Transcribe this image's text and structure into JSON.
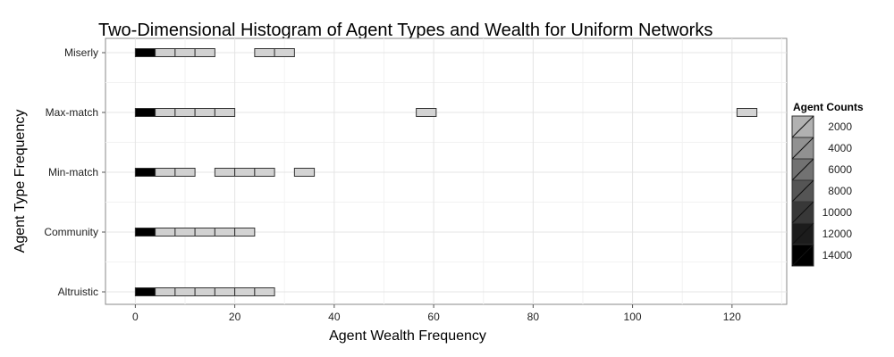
{
  "chart_data": {
    "type": "heatmap",
    "title": "Two-Dimensional Histogram of Agent Types and Wealth for Uniform Networks",
    "xlabel": "Agent Wealth Frequency",
    "ylabel": "Agent Type Frequency",
    "xlim": [
      -6,
      131
    ],
    "x_ticks": [
      0,
      20,
      40,
      60,
      80,
      100,
      120
    ],
    "categories": [
      "Altruistic",
      "Community",
      "Min-match",
      "Max-match",
      "Miserly"
    ],
    "bin_width": 4,
    "legend_title": "Agent Counts",
    "legend_levels": [
      2000,
      4000,
      6000,
      8000,
      10000,
      12000,
      14000
    ],
    "series": [
      {
        "name": "Miserly",
        "bins": [
          {
            "x": 2,
            "count": 14000
          },
          {
            "x": 6,
            "count": 300
          },
          {
            "x": 10,
            "count": 250
          },
          {
            "x": 14,
            "count": 200
          },
          {
            "x": 26,
            "count": 150
          },
          {
            "x": 30,
            "count": 120
          }
        ]
      },
      {
        "name": "Max-match",
        "bins": [
          {
            "x": 2,
            "count": 14000
          },
          {
            "x": 6,
            "count": 300
          },
          {
            "x": 10,
            "count": 250
          },
          {
            "x": 14,
            "count": 200
          },
          {
            "x": 18,
            "count": 150
          },
          {
            "x": 58.5,
            "count": 100
          },
          {
            "x": 123,
            "count": 100
          }
        ]
      },
      {
        "name": "Min-match",
        "bins": [
          {
            "x": 2,
            "count": 14000
          },
          {
            "x": 6,
            "count": 300
          },
          {
            "x": 10,
            "count": 250
          },
          {
            "x": 18,
            "count": 200
          },
          {
            "x": 22,
            "count": 200
          },
          {
            "x": 26,
            "count": 150
          },
          {
            "x": 34,
            "count": 120
          }
        ]
      },
      {
        "name": "Community",
        "bins": [
          {
            "x": 2,
            "count": 14000
          },
          {
            "x": 6,
            "count": 300
          },
          {
            "x": 10,
            "count": 250
          },
          {
            "x": 14,
            "count": 200
          },
          {
            "x": 18,
            "count": 150
          },
          {
            "x": 22,
            "count": 120
          }
        ]
      },
      {
        "name": "Altruistic",
        "bins": [
          {
            "x": 2,
            "count": 14000
          },
          {
            "x": 6,
            "count": 300
          },
          {
            "x": 10,
            "count": 250
          },
          {
            "x": 14,
            "count": 200
          },
          {
            "x": 18,
            "count": 150
          },
          {
            "x": 22,
            "count": 120
          },
          {
            "x": 26,
            "count": 100
          }
        ]
      }
    ]
  }
}
